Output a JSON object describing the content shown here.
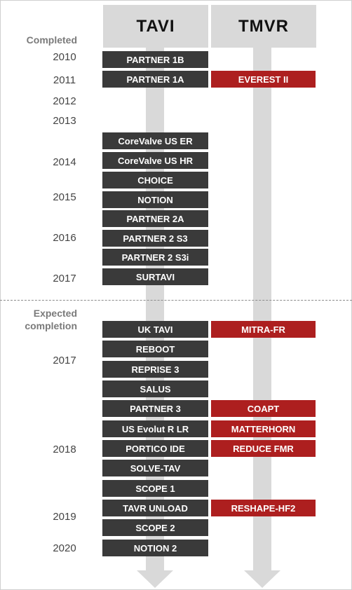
{
  "columns": {
    "tavi": "TAVI",
    "tmvr": "TMVR"
  },
  "sections": {
    "completed": "Completed",
    "expected_line1": "Expected",
    "expected_line2": "completion"
  },
  "years": [
    {
      "label": "2010"
    },
    {
      "label": "2011"
    },
    {
      "label": "2012"
    },
    {
      "label": "2013"
    },
    {
      "label": "2014"
    },
    {
      "label": "2015"
    },
    {
      "label": "2016"
    },
    {
      "label": "2017"
    },
    {
      "label": "2017"
    },
    {
      "label": "2018"
    },
    {
      "label": "2019"
    },
    {
      "label": "2020"
    }
  ],
  "tavi_trials": [
    "PARTNER 1B",
    "PARTNER 1A",
    "CoreValve US ER",
    "CoreValve US HR",
    "CHOICE",
    "NOTION",
    "PARTNER 2A",
    "PARTNER 2 S3",
    "PARTNER 2 S3i",
    "SURTAVI",
    "UK TAVI",
    "REBOOT",
    "REPRISE 3",
    "SALUS",
    "PARTNER 3",
    "US Evolut R LR",
    "PORTICO IDE",
    "SOLVE-TAV",
    "SCOPE 1",
    "TAVR UNLOAD",
    "SCOPE 2",
    "NOTION 2"
  ],
  "tmvr_trials": [
    "EVEREST II",
    "MITRA-FR",
    "COAPT",
    "MATTERHORN",
    "REDUCE FMR",
    "RESHAPE-HF2"
  ],
  "colors": {
    "tavi_box": "#3a3a3a",
    "tmvr_box": "#ad1f1f",
    "arrow": "#d9d9d9"
  }
}
